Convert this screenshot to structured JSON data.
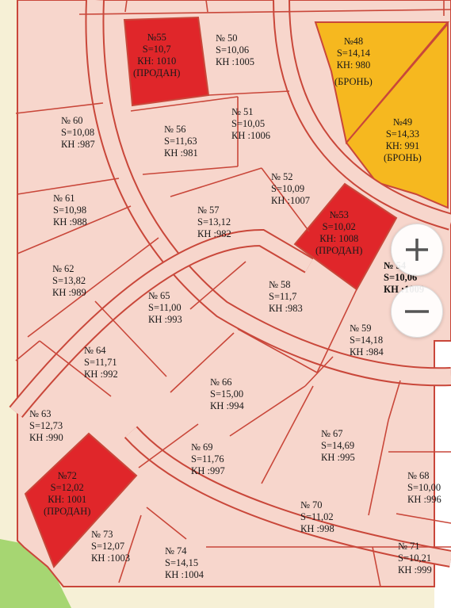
{
  "plots": [
    {
      "id": "p55",
      "lines": [
        "№55",
        "S=10,7",
        "КН: 1010",
        "(ПРОДАН)"
      ],
      "status": "sold"
    },
    {
      "id": "p50",
      "lines": [
        "№ 50",
        "S=10,06",
        "КН :1005"
      ],
      "status": "free"
    },
    {
      "id": "p48",
      "lines": [
        "№48",
        "S=14,14",
        "КН: 980",
        "(БРОНЬ)"
      ],
      "status": "reserved"
    },
    {
      "id": "p49",
      "lines": [
        "№49",
        "S=14,33",
        "КН: 991",
        "(БРОНЬ)"
      ],
      "status": "reserved"
    },
    {
      "id": "p60",
      "lines": [
        "№ 60",
        "S=10,08",
        "КН :987"
      ],
      "status": "free"
    },
    {
      "id": "p51",
      "lines": [
        "№ 51",
        "S=10,05",
        "КН :1006"
      ],
      "status": "free"
    },
    {
      "id": "p56",
      "lines": [
        "№ 56",
        "S=11,63",
        "КН :981"
      ],
      "status": "free"
    },
    {
      "id": "p52",
      "lines": [
        "№ 52",
        "S=10,09",
        "КН :1007"
      ],
      "status": "free"
    },
    {
      "id": "p61",
      "lines": [
        "№ 61",
        "S=10,98",
        "КН :988"
      ],
      "status": "free"
    },
    {
      "id": "p53",
      "lines": [
        "№53",
        "S=10,02",
        "КН: 1008",
        "(ПРОДАН)"
      ],
      "status": "sold"
    },
    {
      "id": "p57",
      "lines": [
        "№ 57",
        "S=13,12",
        "КН :982"
      ],
      "status": "free"
    },
    {
      "id": "p54",
      "lines": [
        "№ 54",
        "S=10,06",
        "КН :1009"
      ],
      "status": "free"
    },
    {
      "id": "p62",
      "lines": [
        "№ 62",
        "S=13,82",
        "КН :989"
      ],
      "status": "free"
    },
    {
      "id": "p58",
      "lines": [
        "№ 58",
        "S=11,7",
        "КН :983"
      ],
      "status": "free"
    },
    {
      "id": "p65",
      "lines": [
        "№ 65",
        "S=11,00",
        "КН :993"
      ],
      "status": "free"
    },
    {
      "id": "p59",
      "lines": [
        "№ 59",
        "S=14,18",
        "КН :984"
      ],
      "status": "free"
    },
    {
      "id": "p64",
      "lines": [
        "№ 64",
        "S=11,71",
        "КН :992"
      ],
      "status": "free"
    },
    {
      "id": "p66",
      "lines": [
        "№ 66",
        "S=15,00",
        "КН :994"
      ],
      "status": "free"
    },
    {
      "id": "p63",
      "lines": [
        "№ 63",
        "S=12,73",
        "КН :990"
      ],
      "status": "free"
    },
    {
      "id": "p67",
      "lines": [
        "№ 67",
        "S=14,69",
        "КН :995"
      ],
      "status": "free"
    },
    {
      "id": "p69",
      "lines": [
        "№ 69",
        "S=11,76",
        "КН :997"
      ],
      "status": "free"
    },
    {
      "id": "p72",
      "lines": [
        "№72",
        "S=12,02",
        "КН: 1001",
        "(ПРОДАН)"
      ],
      "status": "sold"
    },
    {
      "id": "p68",
      "lines": [
        "№ 68",
        "S=10,00",
        "КН :996"
      ],
      "status": "free"
    },
    {
      "id": "p70",
      "lines": [
        "№ 70",
        "S=11,02",
        "КН :998"
      ],
      "status": "free"
    },
    {
      "id": "p73",
      "lines": [
        "№ 73",
        "S=12,07",
        "КН :1003"
      ],
      "status": "free"
    },
    {
      "id": "p74",
      "lines": [
        "№ 74",
        "S=14,15",
        "КН :1004"
      ],
      "status": "free"
    },
    {
      "id": "p71",
      "lines": [
        "№ 71",
        "S=10,21",
        "КН :999"
      ],
      "status": "free"
    }
  ],
  "colors": {
    "plot_fill": "#f7d6cc",
    "plot_stroke": "#c9473a",
    "sold": "#e0262a",
    "reserved": "#f6b81f",
    "background": "#f6f0d6",
    "green_corner": "#a6d672"
  },
  "zoom": {
    "in_icon": "plus-icon",
    "out_icon": "minus-icon"
  }
}
